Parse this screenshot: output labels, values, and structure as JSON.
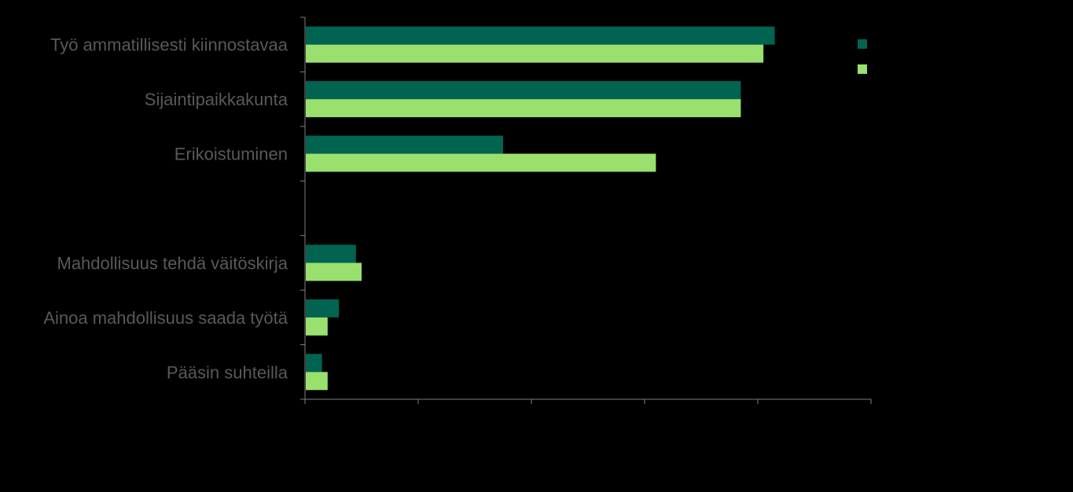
{
  "chart_data": {
    "type": "bar",
    "orientation": "horizontal",
    "title": "",
    "xlabel": "",
    "ylabel": "",
    "categories": [
      "Työ ammatillisesti kiinnostavaa",
      "Sijaintipaikkakunta",
      "Erikoistuminen",
      "",
      "Mahdollisuus tehdä väitöskirja",
      "Ainoa mahdollisuus saada työtä",
      "Pääsin suhteilla"
    ],
    "series": [
      {
        "color": "#006450",
        "values": [
          83,
          77,
          35,
          null,
          9,
          6,
          3
        ]
      },
      {
        "color": "#99e06e",
        "values": [
          81,
          77,
          62,
          null,
          10,
          4,
          4
        ]
      }
    ],
    "xlim": [
      0,
      100
    ],
    "x_ticks": 5,
    "grid": false,
    "legend_position": "top-right",
    "colors": {
      "background": "#000000",
      "axis": "#7f7f7f",
      "label": "#595959"
    }
  }
}
